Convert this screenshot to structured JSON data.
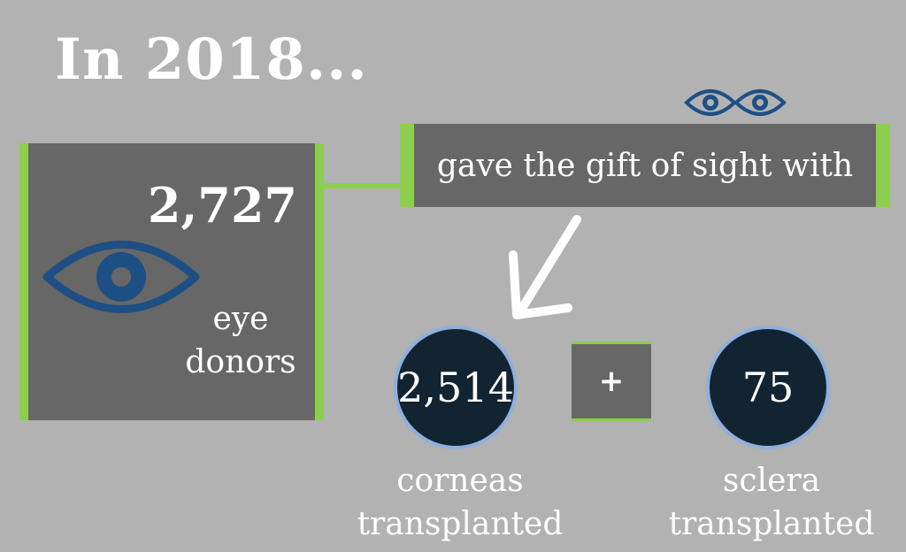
{
  "title": "In 2018...",
  "donors": {
    "number": "2,727",
    "label_line1": "eye",
    "label_line2": "donors"
  },
  "gift_text": "gave the gift of sight with",
  "corneas": {
    "number": "2,514",
    "label_line1": "corneas",
    "label_line2": "transplanted"
  },
  "plus": "+",
  "sclera": {
    "number": "75",
    "label_line1": "sclera",
    "label_line2": "transplanted"
  },
  "icons": {
    "big_eye": "eye-icon",
    "small_eyes": "eyes-icon",
    "arrow": "arrow-down-left-icon"
  },
  "colors": {
    "background": "#b2b2b2",
    "box": "#676767",
    "accent_green": "#8ccf4d",
    "eye_blue": "#1d4f84",
    "circle_fill": "#122431",
    "circle_border": "#8fb0dc"
  }
}
